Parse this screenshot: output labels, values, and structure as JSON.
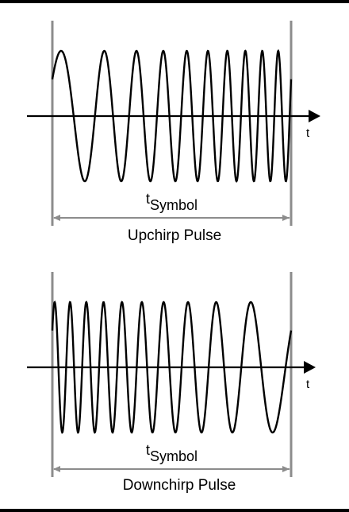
{
  "panels": [
    {
      "id": "upchirp",
      "axis_label": "t",
      "duration_label_base": "t",
      "duration_label_sub": "Symbol",
      "caption": "Upchirp Pulse",
      "chirp": "up",
      "cycles": 10
    },
    {
      "id": "downchirp",
      "axis_label": "t",
      "duration_label_base": "t",
      "duration_label_sub": "Symbol",
      "caption": "Downchirp Pulse",
      "chirp": "down",
      "cycles": 10
    }
  ],
  "colors": {
    "waveform": "#000000",
    "axis": "#000000",
    "boundary": "#8c8c8c",
    "frame": "#000000"
  }
}
